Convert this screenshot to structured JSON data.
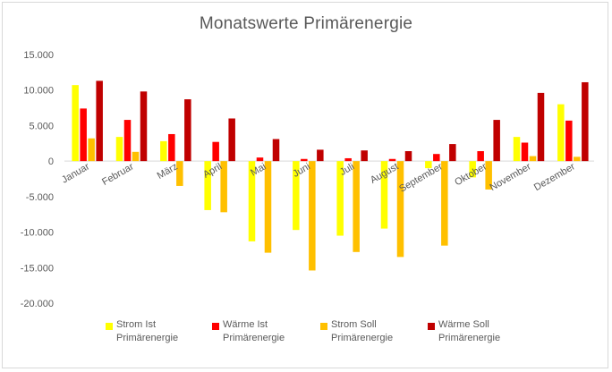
{
  "chart_data": {
    "type": "bar",
    "title": "Monatswerte Primärenergie",
    "xlabel": "",
    "ylabel": "",
    "ylim": [
      -20000,
      15000
    ],
    "yticks": [
      15000,
      10000,
      5000,
      0,
      -5000,
      -10000,
      -15000,
      -20000
    ],
    "ytick_labels": [
      "15.000",
      "10.000",
      "5.000",
      "0",
      "-5.000",
      "-10.000",
      "-15.000",
      "-20.000"
    ],
    "grid": false,
    "legend_position": "bottom",
    "categories": [
      "Januar",
      "Februar",
      "März",
      "April",
      "Mai",
      "Juni",
      "Juli",
      "August",
      "September",
      "Oktober",
      "November",
      "Dezember"
    ],
    "series": [
      {
        "name": "Strom Ist Primärenergie",
        "color": "#FFFF00",
        "values": [
          10700,
          3400,
          2800,
          -6900,
          -11300,
          -9700,
          -10500,
          -9500,
          -1000,
          -2300,
          3400,
          8000
        ]
      },
      {
        "name": "Wärme Ist Primärenergie",
        "color": "#FF0000",
        "values": [
          7400,
          5800,
          3800,
          2700,
          500,
          300,
          400,
          300,
          1000,
          1400,
          2600,
          5700
        ]
      },
      {
        "name": "Strom Soll Primärenergie",
        "color": "#FFC000",
        "values": [
          3200,
          1300,
          -3500,
          -7200,
          -12900,
          -15400,
          -12800,
          -13500,
          -11900,
          -4000,
          700,
          600
        ]
      },
      {
        "name": "Wärme Soll Primärenergie",
        "color": "#C00000",
        "values": [
          11300,
          9800,
          8700,
          6000,
          3100,
          1600,
          1500,
          1400,
          2400,
          5800,
          9600,
          11100
        ]
      }
    ]
  }
}
